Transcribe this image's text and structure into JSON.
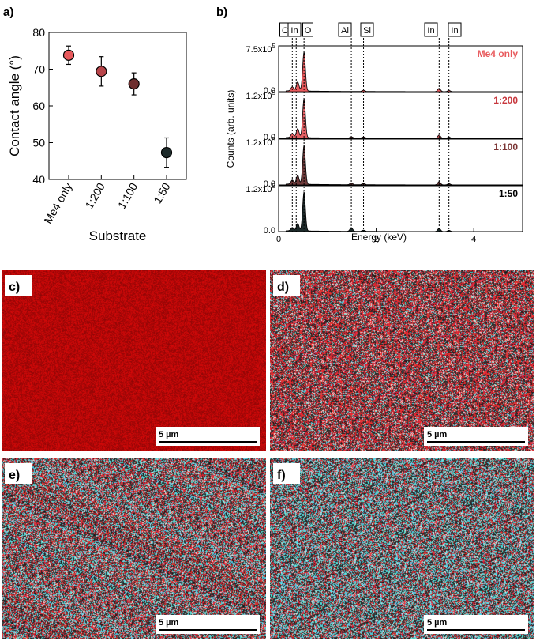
{
  "panel_labels": [
    "a)",
    "b)",
    "c)",
    "d)",
    "e)",
    "f)"
  ],
  "chart_data": [
    {
      "type": "scatter",
      "panel": "a)",
      "xlabel": "Substrate",
      "ylabel": "Contact angle (°)",
      "categories": [
        "Me4 only",
        "1:200",
        "1:100",
        "1:50"
      ],
      "values": [
        73.8,
        69.4,
        66.0,
        47.3
      ],
      "errors": [
        2.5,
        4.0,
        3.0,
        4.0
      ],
      "colors": [
        "#e8595c",
        "#b8454a",
        "#6e2e2e",
        "#1d2a2a"
      ],
      "ylim": [
        40,
        80
      ],
      "yticks": [
        "40",
        "50",
        "60",
        "70",
        "80"
      ],
      "grid": false
    },
    {
      "type": "area",
      "panel": "b)",
      "xlabel": "Energy (keV)",
      "ylabel": "Counts (arb. units)",
      "xlim": [
        0,
        5
      ],
      "xticks": [
        "0",
        "2",
        "4"
      ],
      "element_lines": [
        {
          "label": "C",
          "energy": 0.28
        },
        {
          "label": "In",
          "energy": 0.36
        },
        {
          "label": "O",
          "energy": 0.52
        },
        {
          "label": "Al",
          "energy": 1.49
        },
        {
          "label": "Si",
          "energy": 1.74
        },
        {
          "label": "In",
          "energy": 3.29
        },
        {
          "label": "In",
          "energy": 3.49
        }
      ],
      "series": [
        {
          "name": "Me4 only",
          "ymax_label": "7.5x10",
          "ymax_exp": "5",
          "zero_label": "0.0",
          "color": "#e8595c",
          "label_color": "#e8595c",
          "peaks": [
            [
              0.28,
              0.1
            ],
            [
              0.39,
              0.22
            ],
            [
              0.52,
              0.95
            ],
            [
              1.74,
              0.03
            ],
            [
              3.29,
              0.08
            ],
            [
              3.49,
              0.03
            ]
          ]
        },
        {
          "name": "1:200",
          "ymax_label": "1.2x10",
          "ymax_exp": "5",
          "zero_label": "0.0",
          "color": "#e46064",
          "label_color": "#c7373d",
          "peaks": [
            [
              0.28,
              0.1
            ],
            [
              0.39,
              0.22
            ],
            [
              0.52,
              0.95
            ],
            [
              1.49,
              0.03
            ],
            [
              1.74,
              0.03
            ],
            [
              3.29,
              0.08
            ],
            [
              3.49,
              0.03
            ]
          ]
        },
        {
          "name": "1:100",
          "ymax_label": "1.2x10",
          "ymax_exp": "5",
          "zero_label": "0.0",
          "color": "#6e3a3a",
          "label_color": "#7a3434",
          "peaks": [
            [
              0.28,
              0.1
            ],
            [
              0.39,
              0.22
            ],
            [
              0.52,
              0.95
            ],
            [
              1.49,
              0.04
            ],
            [
              1.74,
              0.03
            ],
            [
              3.29,
              0.08
            ],
            [
              3.49,
              0.03
            ]
          ]
        },
        {
          "name": "1:50",
          "ymax_label": "1.2x10",
          "ymax_exp": "5",
          "zero_label": "0.0",
          "color": "#1d2a2a",
          "label_color": "#000000",
          "peaks": [
            [
              0.28,
              0.08
            ],
            [
              0.39,
              0.18
            ],
            [
              0.52,
              0.95
            ],
            [
              1.49,
              0.09
            ],
            [
              1.74,
              0.03
            ],
            [
              3.29,
              0.08
            ],
            [
              3.49,
              0.03
            ]
          ]
        }
      ]
    }
  ],
  "maps": [
    {
      "panel": "c)",
      "scalebar": "5 µm",
      "base": "#b00d0d",
      "mix": {
        "red": 1.0,
        "dark": 0.0,
        "cyan": 0.0,
        "white": 0.0
      }
    },
    {
      "panel": "d)",
      "scalebar": "5 µm",
      "base": "#2a2224",
      "mix": {
        "red": 0.42,
        "dark": 0.38,
        "cyan": 0.1,
        "white": 0.1
      }
    },
    {
      "panel": "e)",
      "scalebar": "5 µm",
      "base": "#24292c",
      "mix": {
        "red": 0.3,
        "dark": 0.38,
        "cyan": 0.24,
        "white": 0.08
      }
    },
    {
      "panel": "f)",
      "scalebar": "5 µm",
      "base": "#263033",
      "mix": {
        "red": 0.22,
        "dark": 0.38,
        "cyan": 0.32,
        "white": 0.08
      }
    }
  ]
}
